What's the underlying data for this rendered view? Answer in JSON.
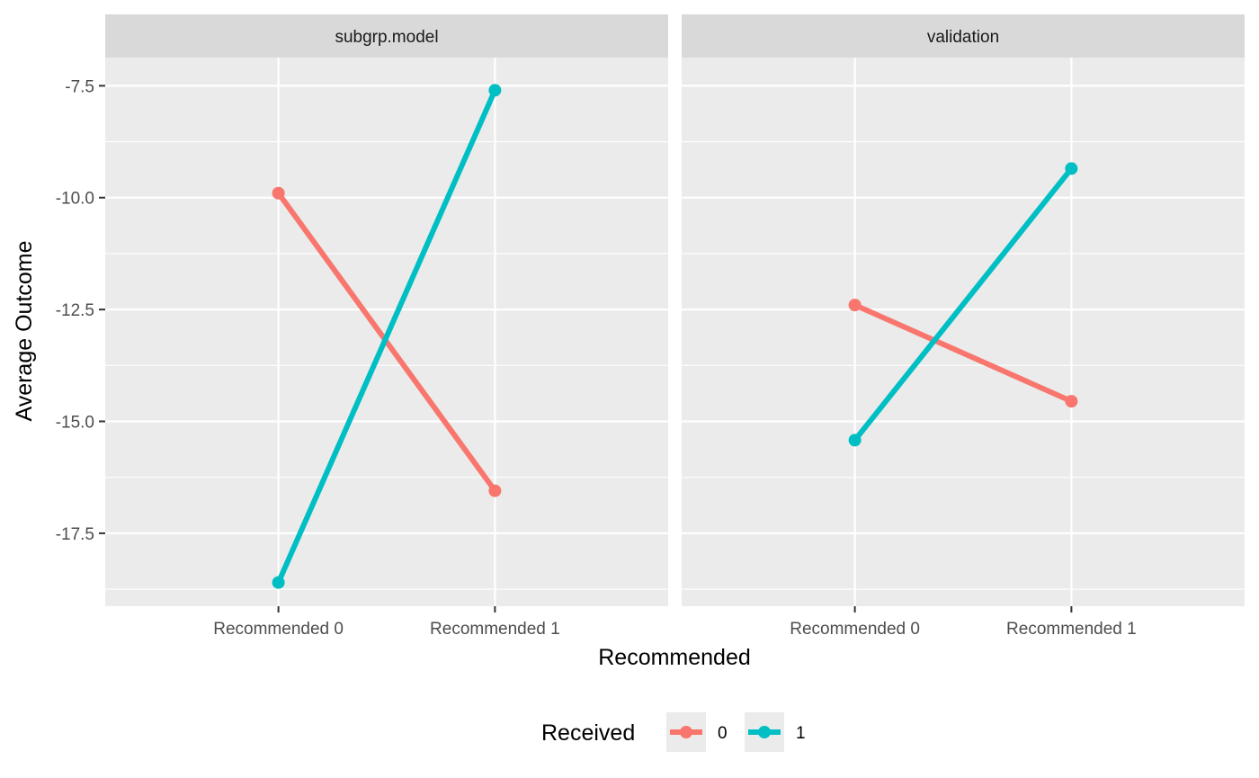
{
  "chart_data": {
    "type": "line",
    "xlabel": "Recommended",
    "ylabel": "Average Outcome",
    "categories": [
      "Recommended 0",
      "Recommended 1"
    ],
    "ylim": [
      -19.13,
      -6.87
    ],
    "y_ticks": [
      -7.5,
      -10.0,
      -12.5,
      -15.0,
      -17.5
    ],
    "y_tick_labels": [
      "-7.5",
      "-10.0",
      "-12.5",
      "-15.0",
      "-17.5"
    ],
    "grid": true,
    "legend": {
      "title": "Received",
      "position": "bottom",
      "entries": [
        {
          "label": "0",
          "color": "#F8766D"
        },
        {
          "label": "1",
          "color": "#00BFC4"
        }
      ]
    },
    "facets": [
      {
        "title": "subgrp.model",
        "series": [
          {
            "name": "0",
            "color": "#F8766D",
            "values": [
              -9.9,
              -16.55
            ]
          },
          {
            "name": "1",
            "color": "#00BFC4",
            "values": [
              -18.6,
              -7.6
            ]
          }
        ]
      },
      {
        "title": "validation",
        "series": [
          {
            "name": "0",
            "color": "#F8766D",
            "values": [
              -12.4,
              -14.55
            ]
          },
          {
            "name": "1",
            "color": "#00BFC4",
            "values": [
              -15.42,
              -9.35
            ]
          }
        ]
      }
    ]
  }
}
